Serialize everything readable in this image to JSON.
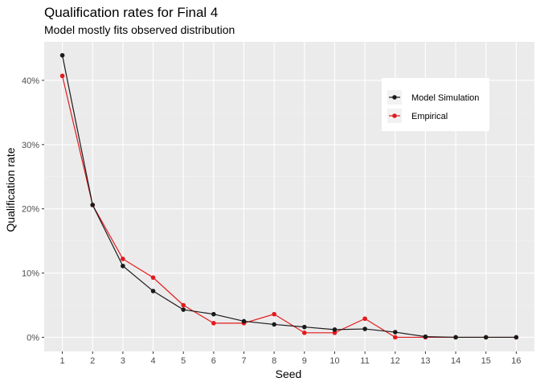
{
  "chart_data": {
    "type": "line",
    "title": "Qualification rates for Final 4",
    "subtitle": "Model mostly fits observed distribution",
    "xlabel": "Seed",
    "ylabel": "Qualification rate",
    "x": [
      1,
      2,
      3,
      4,
      5,
      6,
      7,
      8,
      9,
      10,
      11,
      12,
      13,
      14,
      15,
      16
    ],
    "x_tick_labels": [
      "1",
      "2",
      "3",
      "4",
      "5",
      "6",
      "7",
      "8",
      "9",
      "10",
      "11",
      "12",
      "13",
      "14",
      "15",
      "16"
    ],
    "y_tick_values": [
      0,
      0.1,
      0.2,
      0.3,
      0.4
    ],
    "y_tick_labels": [
      "0%",
      "10%",
      "20%",
      "30%",
      "40%"
    ],
    "xlim": [
      0.4,
      16.6
    ],
    "ylim": [
      -0.022,
      0.46
    ],
    "grid": true,
    "legend_position": "top-right",
    "series": [
      {
        "name": "Model Simulation",
        "color": "#1a1a1a",
        "values": [
          0.439,
          0.206,
          0.111,
          0.072,
          0.043,
          0.036,
          0.025,
          0.02,
          0.016,
          0.012,
          0.013,
          0.008,
          0.001,
          0.0,
          0.0,
          0.0
        ]
      },
      {
        "name": "Empirical",
        "color": "#e41a1c",
        "values": [
          0.407,
          0.206,
          0.122,
          0.093,
          0.05,
          0.022,
          0.022,
          0.036,
          0.007,
          0.007,
          0.029,
          0.0,
          0.0,
          0.0,
          0.0,
          0.0
        ]
      }
    ]
  }
}
